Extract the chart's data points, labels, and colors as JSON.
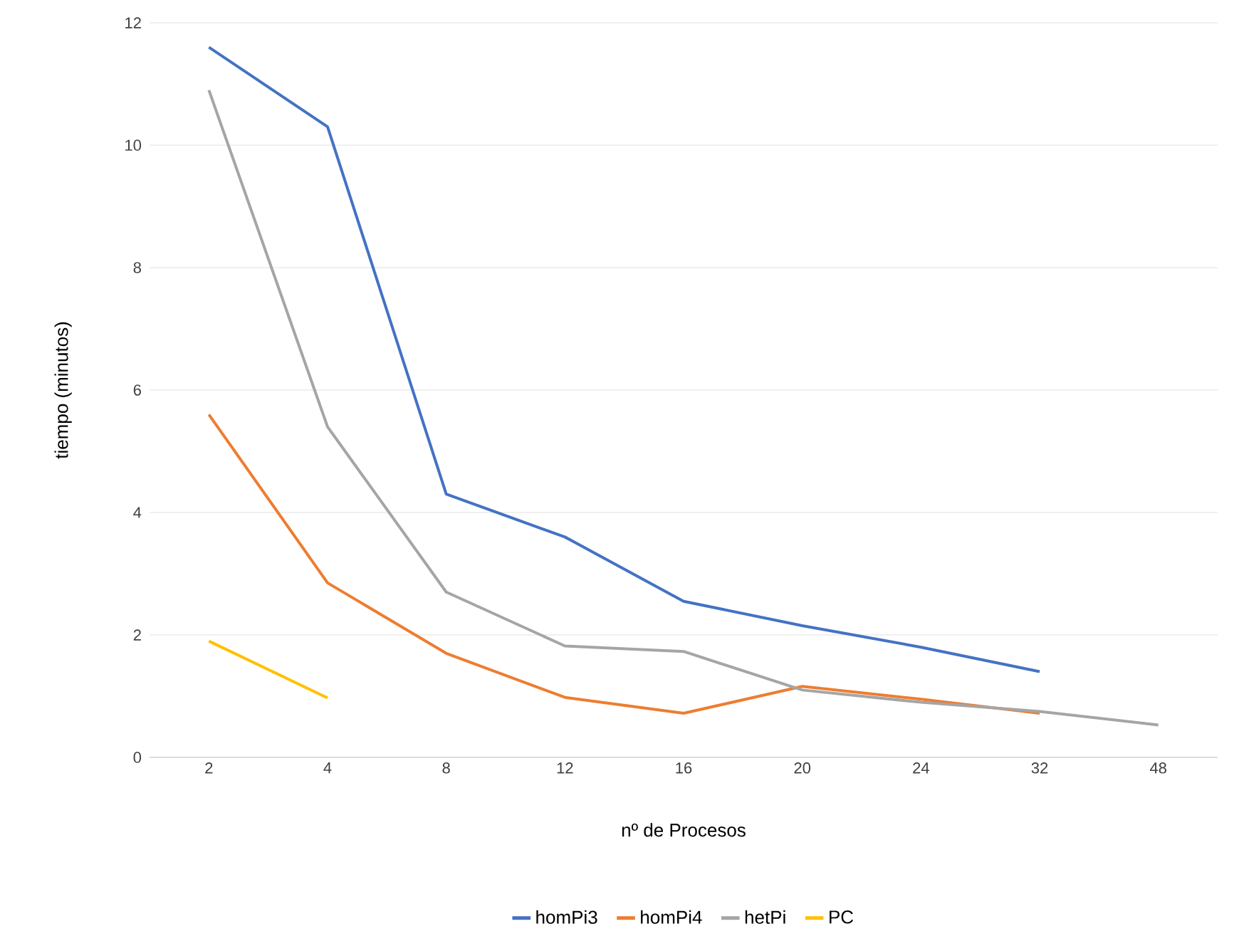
{
  "chart_data": {
    "type": "line",
    "xlabel": "nº de Procesos",
    "ylabel": "tiempo (minutos)",
    "categories": [
      "2",
      "4",
      "8",
      "12",
      "16",
      "20",
      "24",
      "32",
      "48"
    ],
    "series": [
      {
        "name": "homPi3",
        "color": "#4472c4",
        "values": [
          11.6,
          10.3,
          4.3,
          3.6,
          2.55,
          2.15,
          1.8,
          1.4,
          null
        ]
      },
      {
        "name": "homPi4",
        "color": "#ed7d31",
        "values": [
          5.6,
          2.85,
          1.7,
          0.98,
          0.72,
          1.16,
          0.95,
          0.72,
          null
        ]
      },
      {
        "name": "hetPi",
        "color": "#a5a5a5",
        "values": [
          10.9,
          5.4,
          2.7,
          1.82,
          1.73,
          1.1,
          0.9,
          0.75,
          0.53
        ]
      },
      {
        "name": "PC",
        "color": "#ffc000",
        "values": [
          1.9,
          0.97,
          null,
          null,
          null,
          null,
          null,
          null,
          null
        ]
      }
    ],
    "ylim": [
      0,
      12
    ],
    "yticks": [
      0,
      2,
      4,
      6,
      8,
      10,
      12
    ],
    "grid": "y",
    "legend": "bottom",
    "marker": "none",
    "line_style": "solid"
  }
}
